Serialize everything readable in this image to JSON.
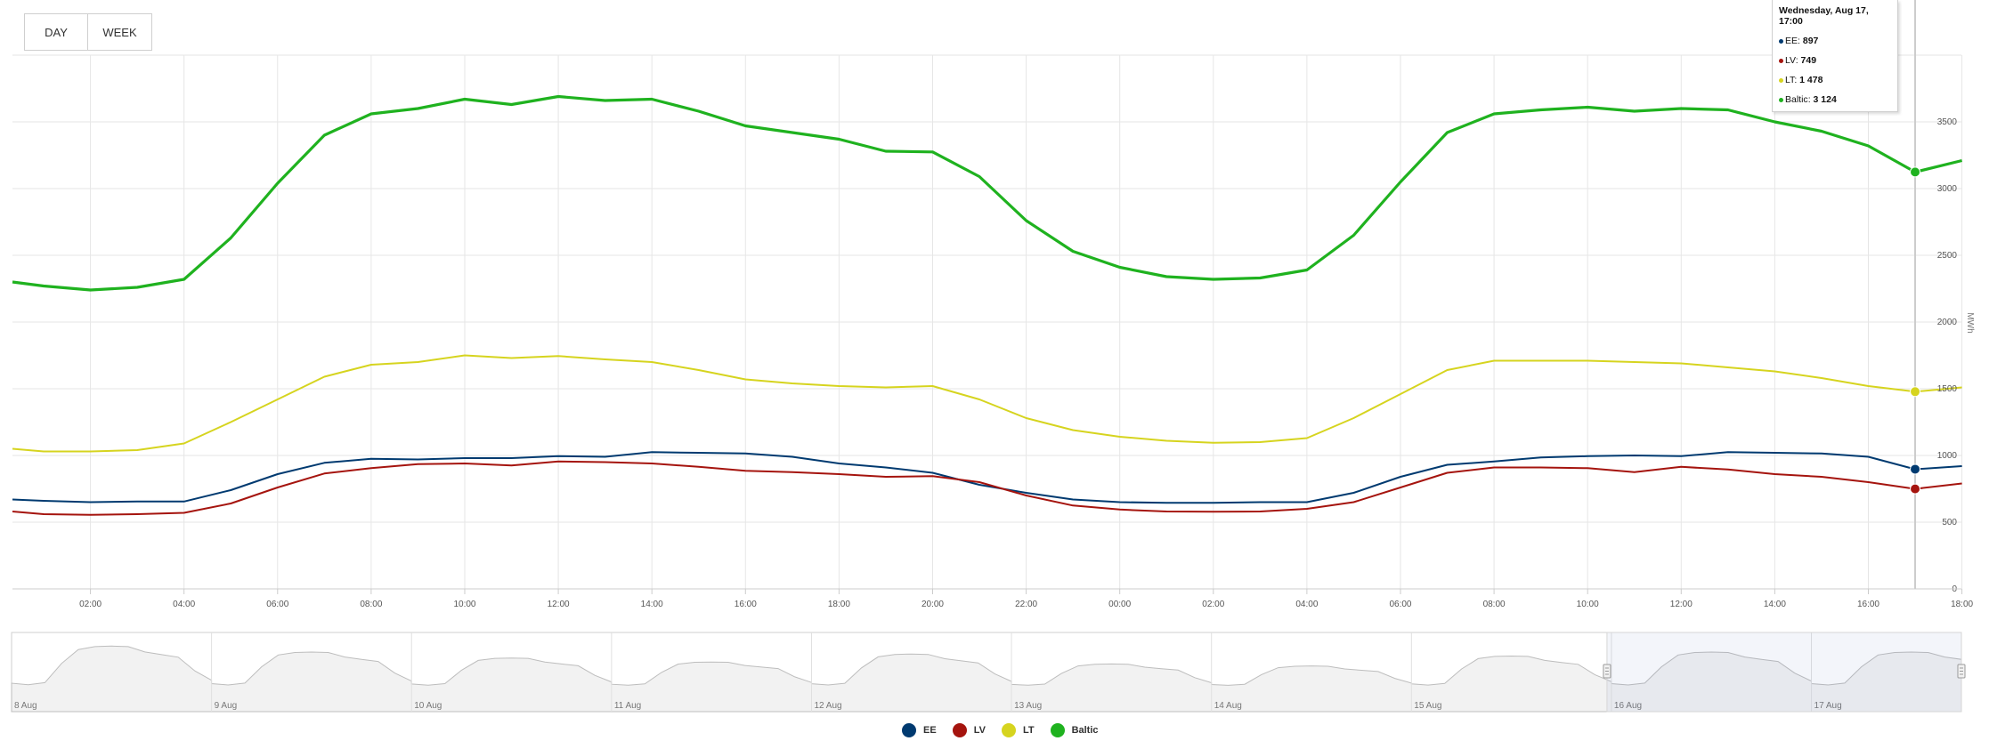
{
  "range_buttons": [
    {
      "label": "DAY"
    },
    {
      "label": "WEEK"
    }
  ],
  "tooltip": {
    "title": "Wednesday, Aug 17, 17:00",
    "rows": [
      {
        "name": "EE",
        "value": "897",
        "color": "#003a70"
      },
      {
        "name": "LV",
        "value": "749",
        "color": "#a5140e"
      },
      {
        "name": "LT",
        "value": "1 478",
        "color": "#d6d41f"
      },
      {
        "name": "Baltic",
        "value": "3 124",
        "color": "#1fb21f"
      }
    ]
  },
  "chart_data": {
    "type": "line",
    "ylabel": "MWh",
    "ylim": [
      0,
      4000
    ],
    "yticks": [
      0,
      500,
      1000,
      1500,
      2000,
      2500,
      3000,
      3500
    ],
    "x_tick_labels": [
      "02:00",
      "04:00",
      "06:00",
      "08:00",
      "10:00",
      "12:00",
      "14:00",
      "16:00",
      "18:00",
      "20:00",
      "22:00",
      "00:00",
      "02:00",
      "04:00",
      "06:00",
      "08:00",
      "10:00",
      "12:00",
      "14:00",
      "16:00",
      "18:00"
    ],
    "x": [
      "Aug 16 00:20",
      "Aug 16 01:00",
      "Aug 16 02:00",
      "Aug 16 03:00",
      "Aug 16 04:00",
      "Aug 16 05:00",
      "Aug 16 06:00",
      "Aug 16 07:00",
      "Aug 16 08:00",
      "Aug 16 09:00",
      "Aug 16 10:00",
      "Aug 16 11:00",
      "Aug 16 12:00",
      "Aug 16 13:00",
      "Aug 16 14:00",
      "Aug 16 15:00",
      "Aug 16 16:00",
      "Aug 16 17:00",
      "Aug 16 18:00",
      "Aug 16 19:00",
      "Aug 16 20:00",
      "Aug 16 21:00",
      "Aug 16 22:00",
      "Aug 16 23:00",
      "Aug 17 00:00",
      "Aug 17 01:00",
      "Aug 17 02:00",
      "Aug 17 03:00",
      "Aug 17 04:00",
      "Aug 17 05:00",
      "Aug 17 06:00",
      "Aug 17 07:00",
      "Aug 17 08:00",
      "Aug 17 09:00",
      "Aug 17 10:00",
      "Aug 17 11:00",
      "Aug 17 12:00",
      "Aug 17 13:00",
      "Aug 17 14:00",
      "Aug 17 15:00",
      "Aug 17 16:00",
      "Aug 17 17:00",
      "Aug 17 18:00"
    ],
    "series": [
      {
        "name": "EE",
        "color": "#003a70",
        "width": 2,
        "values": [
          670,
          660,
          650,
          655,
          655,
          740,
          860,
          945,
          975,
          970,
          980,
          980,
          995,
          990,
          1025,
          1020,
          1015,
          990,
          940,
          910,
          870,
          780,
          720,
          670,
          650,
          645,
          645,
          650,
          650,
          720,
          840,
          930,
          955,
          985,
          995,
          1000,
          995,
          1025,
          1020,
          1015,
          990,
          897,
          920
        ]
      },
      {
        "name": "LV",
        "color": "#a5140e",
        "width": 2,
        "values": [
          580,
          560,
          555,
          560,
          570,
          640,
          760,
          865,
          905,
          935,
          940,
          925,
          955,
          950,
          940,
          915,
          885,
          875,
          860,
          840,
          845,
          800,
          700,
          625,
          595,
          580,
          578,
          580,
          600,
          650,
          760,
          870,
          910,
          910,
          905,
          875,
          915,
          895,
          860,
          840,
          800,
          749,
          790
        ]
      },
      {
        "name": "LT",
        "color": "#d6d41f",
        "width": 2,
        "values": [
          1050,
          1030,
          1030,
          1040,
          1090,
          1250,
          1420,
          1590,
          1680,
          1700,
          1750,
          1730,
          1745,
          1720,
          1700,
          1640,
          1570,
          1540,
          1520,
          1510,
          1520,
          1420,
          1280,
          1190,
          1140,
          1110,
          1095,
          1100,
          1130,
          1280,
          1460,
          1640,
          1710,
          1710,
          1710,
          1700,
          1690,
          1660,
          1630,
          1580,
          1520,
          1478,
          1510
        ]
      },
      {
        "name": "Baltic",
        "color": "#1fb21f",
        "width": 3.2,
        "values": [
          2300,
          2270,
          2240,
          2260,
          2320,
          2630,
          3040,
          3400,
          3560,
          3600,
          3670,
          3630,
          3690,
          3660,
          3670,
          3580,
          3470,
          3420,
          3370,
          3280,
          3275,
          3090,
          2760,
          2530,
          2410,
          2340,
          2320,
          2330,
          2390,
          2650,
          3050,
          3420,
          3560,
          3590,
          3610,
          3580,
          3600,
          3590,
          3500,
          3430,
          3320,
          3124,
          3210
        ]
      }
    ],
    "highlight": {
      "x": "Aug 17 17:00"
    }
  },
  "navigator": {
    "day_labels": [
      "8 Aug",
      "9 Aug",
      "10 Aug",
      "11 Aug",
      "12 Aug",
      "13 Aug",
      "14 Aug",
      "15 Aug",
      "16 Aug",
      "17 Aug"
    ],
    "handle_glyph": "≡"
  },
  "legend": [
    {
      "name": "EE",
      "color": "#003a70"
    },
    {
      "name": "LV",
      "color": "#a5140e"
    },
    {
      "name": "LT",
      "color": "#d6d41f"
    },
    {
      "name": "Baltic",
      "color": "#1fb21f"
    }
  ]
}
